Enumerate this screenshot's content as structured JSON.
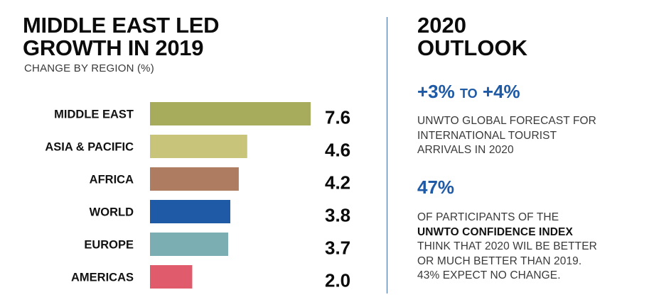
{
  "left_panel": {
    "title_line1": "MIDDLE EAST LED",
    "title_line2": "GROWTH IN 2019",
    "subtitle": "CHANGE BY REGION (%)"
  },
  "chart_data": {
    "type": "bar",
    "orientation": "horizontal",
    "title": "MIDDLE EAST LED GROWTH IN 2019",
    "subtitle": "CHANGE BY REGION (%)",
    "categories": [
      "MIDDLE EAST",
      "ASIA & PACIFIC",
      "AFRICA",
      "WORLD",
      "EUROPE",
      "AMERICAS"
    ],
    "values": [
      7.6,
      4.6,
      4.2,
      3.8,
      3.7,
      2.0
    ],
    "value_labels": [
      "7.6",
      "4.6",
      "4.2",
      "3.8",
      "3.7",
      "2.0"
    ],
    "colors": [
      "#a7ab5c",
      "#c8c57b",
      "#ae7c60",
      "#1f5aa6",
      "#7aaeb2",
      "#e05c6c"
    ],
    "xlim": [
      0,
      7.6
    ],
    "grid": false,
    "legend": "none"
  },
  "right_panel": {
    "title_line1": "2020",
    "title_line2": "OUTLOOK",
    "stat1_from": "+3%",
    "stat1_to_word": "TO",
    "stat1_to": "+4%",
    "stat1_desc_line1": "UNWTO GLOBAL FORECAST FOR",
    "stat1_desc_line2": "INTERNATIONAL TOURIST",
    "stat1_desc_line3": "ARRIVALS IN 2020",
    "stat2": "47%",
    "stat2_desc_line1": "OF PARTICIPANTS OF THE",
    "stat2_desc_bold": "UNWTO CONFIDENCE INDEX",
    "stat2_desc_line3": "THINK THAT 2020 WIL BE BETTER",
    "stat2_desc_line4": "OR MUCH BETTER THAN 2019.",
    "stat2_desc_line5": "43% EXPECT NO CHANGE.",
    "accent_color": "#1f5aa6"
  }
}
